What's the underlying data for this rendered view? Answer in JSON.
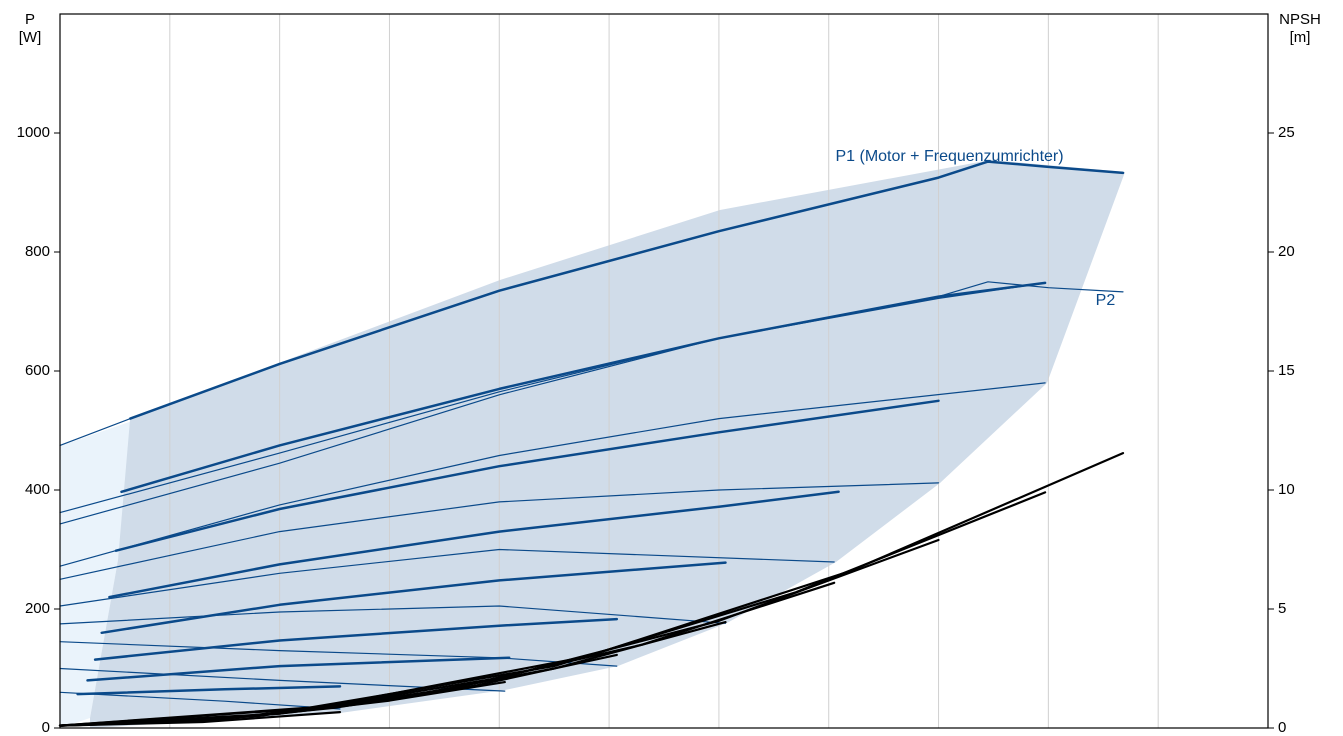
{
  "chart_data": {
    "type": "line",
    "ylabel": [
      "P",
      "[W]"
    ],
    "y2label": [
      "NPSH",
      "[m]"
    ],
    "annotations": [
      {
        "text": "P1 (Motor + Frequenzumrichter)",
        "x": 8.1,
        "y": 960
      },
      {
        "text": "P2",
        "x": 9.52,
        "y": 718
      }
    ],
    "xlim": [
      0,
      11
    ],
    "xticks": [
      0,
      1,
      2,
      3,
      4,
      5,
      6,
      7,
      8,
      9,
      10,
      11
    ],
    "ylim": [
      0,
      1200
    ],
    "yticks": [
      0,
      200,
      400,
      600,
      800,
      1000
    ],
    "y2lim": [
      0,
      30
    ],
    "y2ticks": [
      0,
      5,
      10,
      15,
      20,
      25
    ],
    "grid": true,
    "series": [
      {
        "color": "#0b4a8a",
        "line_width": 2.5,
        "x": [
          0.64,
          2,
          4,
          6,
          8,
          8.45,
          9,
          9.68
        ],
        "values": [
          520,
          612,
          735,
          835,
          925,
          952,
          943,
          933
        ]
      },
      {
        "color": "#0b4a8a",
        "line_width": 2.5,
        "x": [
          0.56,
          2,
          4,
          6,
          8,
          8.97
        ],
        "values": [
          397,
          475,
          570,
          655,
          725,
          748
        ]
      },
      {
        "color": "#0b4a8a",
        "line_width": 2.5,
        "x": [
          0.51,
          2,
          4,
          6,
          8
        ],
        "values": [
          298,
          368,
          440,
          497,
          550
        ]
      },
      {
        "color": "#0b4a8a",
        "line_width": 2.5,
        "x": [
          0.45,
          2,
          4,
          6,
          7.09
        ],
        "values": [
          220,
          275,
          330,
          372,
          397
        ]
      },
      {
        "color": "#0b4a8a",
        "line_width": 2.5,
        "x": [
          0.38,
          2,
          4,
          6.06
        ],
        "values": [
          160,
          207,
          248,
          278
        ]
      },
      {
        "color": "#0b4a8a",
        "line_width": 2.5,
        "x": [
          0.32,
          2,
          4,
          5.07
        ],
        "values": [
          115,
          147,
          172,
          183
        ]
      },
      {
        "color": "#0b4a8a",
        "line_width": 2.5,
        "x": [
          0.25,
          2,
          4.09
        ],
        "values": [
          80,
          104,
          118
        ]
      },
      {
        "color": "#0b4a8a",
        "line_width": 2.5,
        "x": [
          0.16,
          1.5,
          2.55
        ],
        "values": [
          57,
          65,
          70
        ]
      },
      {
        "color": "#0b4a8a",
        "line_width": 1.2,
        "x": [
          0,
          0.64
        ],
        "values": [
          475,
          520
        ]
      },
      {
        "color": "#0b4a8a",
        "line_width": 1.2,
        "x": [
          0,
          2,
          4,
          6,
          8,
          8.45,
          9,
          9.68
        ],
        "values": [
          362,
          462,
          565,
          655,
          725,
          750,
          740,
          733
        ]
      },
      {
        "color": "#0b4a8a",
        "line_width": 1.2,
        "x": [
          0,
          2,
          4,
          6,
          8,
          8.97
        ],
        "values": [
          343,
          445,
          560,
          655,
          722,
          748
        ]
      },
      {
        "color": "#0b4a8a",
        "line_width": 1.2,
        "x": [
          0,
          2,
          4,
          6,
          8.97
        ],
        "values": [
          272,
          375,
          458,
          520,
          580
        ]
      },
      {
        "color": "#0b4a8a",
        "line_width": 1.2,
        "x": [
          0,
          2,
          4,
          6,
          8
        ],
        "values": [
          250,
          330,
          380,
          400,
          412
        ]
      },
      {
        "color": "#0b4a8a",
        "line_width": 1.2,
        "x": [
          0,
          2,
          4,
          7.05
        ],
        "values": [
          205,
          260,
          300,
          279
        ]
      },
      {
        "color": "#0b4a8a",
        "line_width": 1.2,
        "x": [
          0,
          2,
          4,
          6.06
        ],
        "values": [
          175,
          195,
          205,
          176
        ]
      },
      {
        "color": "#0b4a8a",
        "line_width": 1.2,
        "x": [
          0,
          2,
          4,
          5.07
        ],
        "values": [
          145,
          130,
          118,
          104
        ]
      },
      {
        "color": "#0b4a8a",
        "line_width": 1.2,
        "x": [
          0,
          2,
          4.05
        ],
        "values": [
          100,
          80,
          62
        ]
      },
      {
        "color": "#0b4a8a",
        "line_width": 1.2,
        "x": [
          0,
          1.5,
          2.55
        ],
        "values": [
          60,
          45,
          32
        ]
      },
      {
        "color": "#000000",
        "line_width": 2.2,
        "axis": "y2",
        "x": [
          0,
          2.4,
          4.8,
          7.2,
          9.68
        ],
        "values": [
          0.1,
          0.9,
          3.0,
          6.6,
          11.55
        ]
      },
      {
        "color": "#000000",
        "line_width": 2.2,
        "axis": "y2",
        "x": [
          0,
          2.2,
          4.5,
          6.7,
          8.97
        ],
        "values": [
          0.1,
          0.8,
          2.6,
          5.7,
          9.9
        ]
      },
      {
        "color": "#000000",
        "line_width": 2.2,
        "axis": "y2",
        "x": [
          0,
          2,
          4,
          6,
          8
        ],
        "values": [
          0.1,
          0.6,
          2.1,
          4.5,
          7.9
        ]
      },
      {
        "color": "#000000",
        "line_width": 2.2,
        "axis": "y2",
        "x": [
          0,
          1.8,
          3.5,
          5.3,
          7.05
        ],
        "values": [
          0.1,
          0.5,
          1.6,
          3.5,
          6.1
        ]
      },
      {
        "color": "#000000",
        "line_width": 2.2,
        "axis": "y2",
        "x": [
          0,
          1.5,
          3,
          4.5,
          6.06
        ],
        "values": [
          0.1,
          0.4,
          1.2,
          2.5,
          4.45
        ]
      },
      {
        "color": "#000000",
        "line_width": 2.2,
        "axis": "y2",
        "x": [
          0,
          1.3,
          2.5,
          3.8,
          5.07
        ],
        "values": [
          0.1,
          0.3,
          0.85,
          1.8,
          3.07
        ]
      },
      {
        "color": "#000000",
        "line_width": 2.2,
        "axis": "y2",
        "x": [
          0,
          1,
          2,
          3,
          4.05
        ],
        "values": [
          0.1,
          0.25,
          0.6,
          1.15,
          1.93
        ]
      },
      {
        "color": "#000000",
        "line_width": 2.2,
        "axis": "y2",
        "x": [
          0,
          1.3,
          2.55
        ],
        "values": [
          0.1,
          0.25,
          0.67
        ]
      }
    ]
  }
}
